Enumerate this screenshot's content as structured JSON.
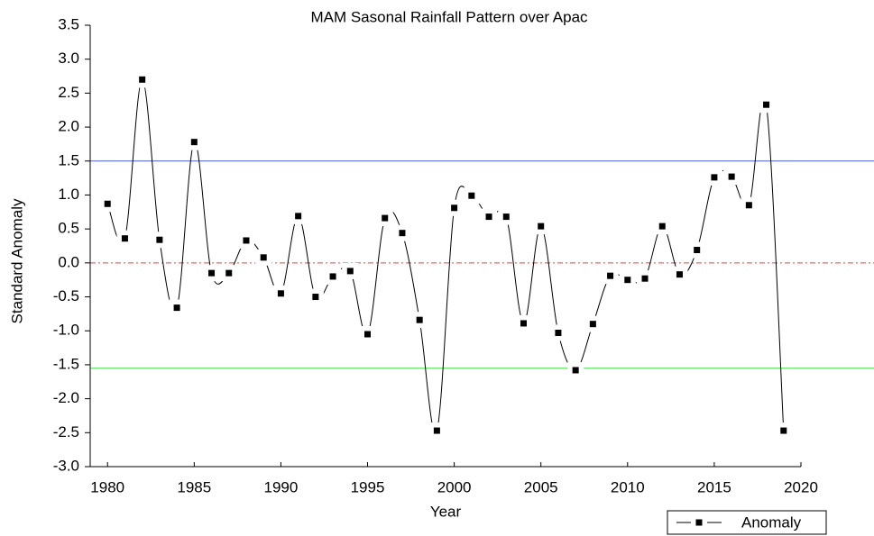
{
  "chart_data": {
    "type": "line",
    "title": "MAM Sasonal Rainfall Pattern over Apac",
    "x_label": "Year",
    "y_label": "Standard Anomaly",
    "x": [
      1980,
      1981,
      1982,
      1983,
      1984,
      1985,
      1986,
      1987,
      1988,
      1989,
      1990,
      1991,
      1992,
      1993,
      1994,
      1995,
      1996,
      1997,
      1998,
      1999,
      2000,
      2001,
      2002,
      2003,
      2004,
      2005,
      2006,
      2007,
      2008,
      2009,
      2010,
      2011,
      2012,
      2013,
      2014,
      2015,
      2016,
      2017,
      2018,
      2019
    ],
    "series": [
      {
        "name": "Anomaly",
        "color": "#000000",
        "values": [
          0.87,
          0.36,
          2.7,
          0.34,
          -0.66,
          1.78,
          -0.15,
          -0.15,
          0.33,
          0.08,
          -0.45,
          0.69,
          -0.5,
          -0.2,
          -0.12,
          -1.05,
          0.66,
          0.44,
          -0.84,
          -2.47,
          0.81,
          0.99,
          0.68,
          0.68,
          -0.89,
          0.54,
          -1.03,
          -1.58,
          -0.9,
          -0.19,
          -0.25,
          -0.23,
          0.54,
          -0.17,
          0.19,
          1.26,
          1.27,
          0.85,
          2.33,
          -2.47
        ]
      }
    ],
    "reference_lines": [
      {
        "value": 1.5,
        "color": "#4a5fd6"
      },
      {
        "value": 0,
        "color": "#e84040"
      },
      {
        "value": -1.55,
        "color": "#3ee03e"
      }
    ],
    "xlim": [
      1979,
      2020
    ],
    "xticks": [
      1980,
      1985,
      1990,
      1995,
      2000,
      2005,
      2010,
      2015,
      2020
    ],
    "ylim": [
      -3.0,
      3.5
    ],
    "yticks": [
      {
        "value": -3,
        "label": "-3.0"
      },
      -2.5,
      {
        "value": -2,
        "label": "-2.0"
      },
      -1.5,
      {
        "value": -1,
        "label": "-1.0"
      },
      -0.5,
      {
        "value": 0,
        "label": "0.0"
      },
      0.5,
      {
        "value": 1,
        "label": "1.0"
      },
      1.5,
      {
        "value": 2,
        "label": "2.0"
      },
      2.5,
      {
        "value": 3,
        "label": "3.0"
      },
      3.5
    ],
    "legend": "bottom-right"
  }
}
